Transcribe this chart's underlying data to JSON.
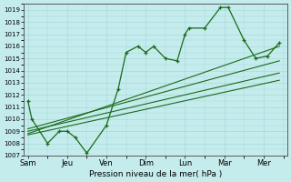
{
  "xlabel": "Pression niveau de la mer( hPa )",
  "ylim": [
    1007,
    1019.5
  ],
  "yticks": [
    1007,
    1008,
    1009,
    1010,
    1011,
    1012,
    1013,
    1014,
    1015,
    1016,
    1017,
    1018,
    1019
  ],
  "xtick_labels": [
    "Sam",
    "Jeu",
    "Ven",
    "Dim",
    "Lun",
    "Mar",
    "Mer"
  ],
  "xtick_positions": [
    0,
    1,
    2,
    3,
    4,
    5,
    6
  ],
  "xlim": [
    -0.1,
    6.6
  ],
  "background_color": "#c5eced",
  "grid_color": "#a8d8da",
  "line_color": "#1a6b1a",
  "main_x": [
    0,
    0.1,
    0.5,
    0.8,
    1.0,
    1.2,
    1.5,
    2.0,
    2.3,
    2.5,
    2.8,
    3.0,
    3.2,
    3.5,
    3.8,
    4.0,
    4.1,
    4.5,
    4.9,
    5.1,
    5.5,
    5.8,
    6.1,
    6.4
  ],
  "main_y": [
    1011.5,
    1010.0,
    1008.0,
    1009.0,
    1009.0,
    1008.5,
    1007.2,
    1009.5,
    1012.5,
    1015.5,
    1016.0,
    1015.5,
    1016.0,
    1015.0,
    1014.8,
    1017.0,
    1017.5,
    1017.5,
    1019.2,
    1019.2,
    1016.5,
    1015.0,
    1015.2,
    1016.3
  ],
  "trend_lines": [
    {
      "x": [
        0,
        6.4
      ],
      "y": [
        1009.2,
        1014.8
      ]
    },
    {
      "x": [
        0,
        6.4
      ],
      "y": [
        1009.0,
        1013.8
      ]
    },
    {
      "x": [
        0,
        6.4
      ],
      "y": [
        1008.7,
        1013.2
      ]
    },
    {
      "x": [
        0,
        6.4
      ],
      "y": [
        1008.8,
        1016.0
      ]
    }
  ]
}
